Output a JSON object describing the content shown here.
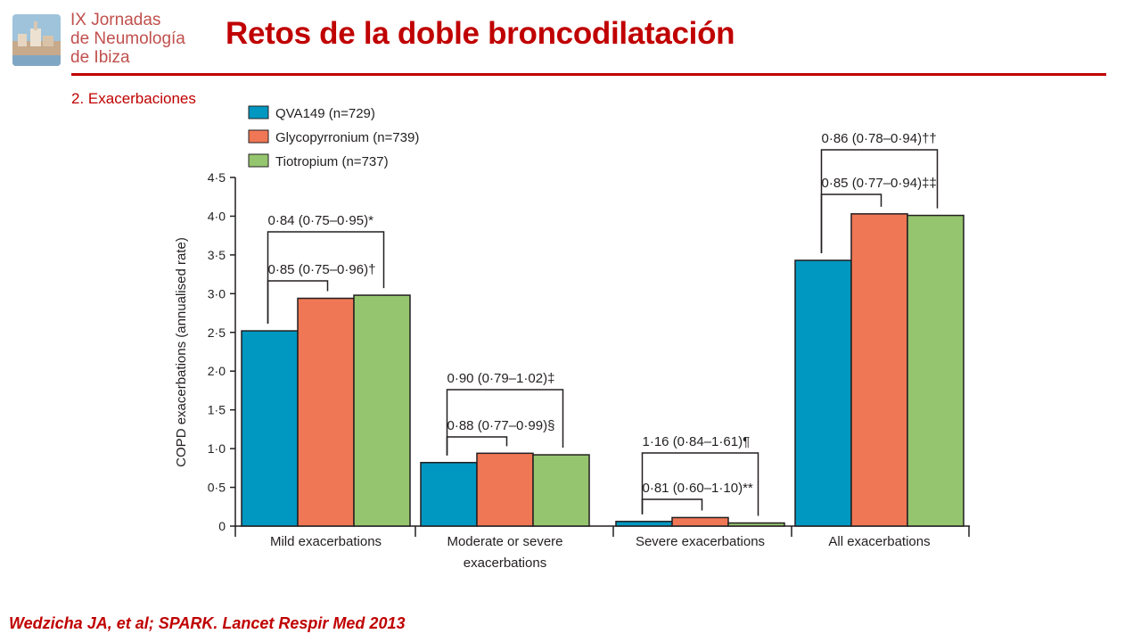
{
  "slide": {
    "logo_lines": [
      "IX Jornadas",
      "de Neumología",
      "de Ibiza"
    ],
    "title": "Retos de la doble broncodilatación",
    "subtitle": "2. Exacerbaciones",
    "citation": "Wedzicha JA, et al; SPARK. Lancet Respir Med 2013"
  },
  "colors": {
    "accent": "#c00000",
    "logo_text": "#c0504d"
  },
  "chart_data": {
    "type": "bar",
    "ylabel": "COPD exacerbations (annualised rate)",
    "xlabel": "",
    "ylim": [
      0,
      4.5
    ],
    "yticks": [
      "0",
      "0·5",
      "1·0",
      "1·5",
      "2·0",
      "2·5",
      "3·0",
      "3·5",
      "4·0",
      "4·5"
    ],
    "categories": [
      [
        "Mild exacerbations"
      ],
      [
        "Moderate or severe",
        "exacerbations"
      ],
      [
        "Severe exacerbations"
      ],
      [
        "All exacerbations"
      ]
    ],
    "series": [
      {
        "name": "QVA149 (n=729)",
        "color": "#0097c1",
        "values": [
          2.52,
          0.82,
          0.06,
          3.43
        ]
      },
      {
        "name": "Glycopyrronium (n=739)",
        "color": "#f07755",
        "values": [
          2.94,
          0.94,
          0.11,
          4.03
        ]
      },
      {
        "name": "Tiotropium (n=737)",
        "color": "#95c56e",
        "values": [
          2.98,
          0.92,
          0.04,
          4.01
        ]
      }
    ],
    "legend_position": "top-left",
    "annotations": [
      {
        "text": "0·84 (0·75–0·95)*",
        "group": 0,
        "vs": 2
      },
      {
        "text": "0·85 (0·75–0·96)†",
        "group": 0,
        "vs": 1
      },
      {
        "text": "0·90 (0·79–1·02)‡",
        "group": 1,
        "vs": 2
      },
      {
        "text": "0·88 (0·77–0·99)§",
        "group": 1,
        "vs": 1
      },
      {
        "text": "1·16 (0·84–1·61)¶",
        "group": 2,
        "vs": 2
      },
      {
        "text": "0·81 (0·60–1·10)**",
        "group": 2,
        "vs": 1
      },
      {
        "text": "0·86 (0·78–0·94)††",
        "group": 3,
        "vs": 2
      },
      {
        "text": "0·85 (0·77–0·94)‡‡",
        "group": 3,
        "vs": 1
      }
    ]
  }
}
